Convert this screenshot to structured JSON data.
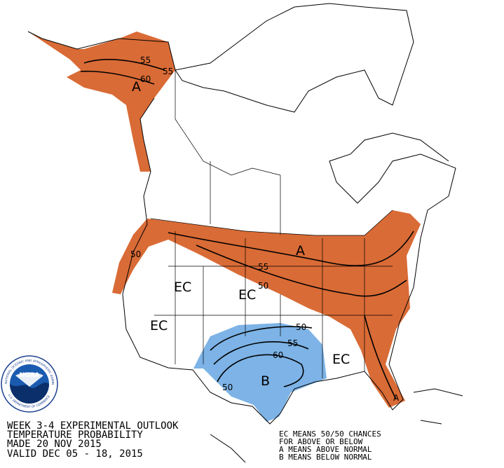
{
  "title_block": {
    "lines": [
      "WEEK 3-4 EXPERIMENTAL OUTLOOK",
      "TEMPERATURE PROBABILITY",
      "MADE  20 NOV 2015",
      "VALID  DEC 05 - 18, 2015"
    ]
  },
  "legend": {
    "lines": [
      "EC MEANS 50/50 CHANCES",
      "FOR ABOVE OR BELOW",
      "A MEANS ABOVE NORMAL",
      "B MEANS BELOW NORMAL"
    ]
  },
  "logo": {
    "name": "NOAA",
    "ring_top": "NATIONAL OCEANIC AND ATMOSPHERIC ADMINISTRATION",
    "ring_bottom": "U.S. DEPARTMENT OF COMMERCE"
  },
  "map_labels": [
    "A",
    "55",
    "60",
    "55",
    "A",
    "55",
    "50",
    "50",
    "EC",
    "EC",
    "EC",
    "EC",
    "50",
    "55",
    "60",
    "B",
    "50",
    "A"
  ]
}
